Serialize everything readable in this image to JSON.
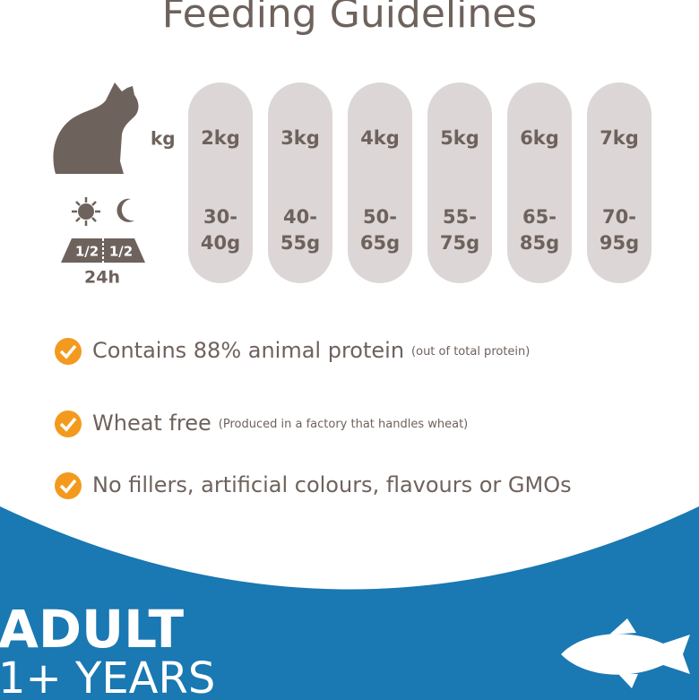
{
  "title": "Feeding Guidelines",
  "weight_unit": "kg",
  "portion": {
    "day_split": [
      "1/2",
      "1/2"
    ],
    "period": "24h"
  },
  "columns": [
    {
      "weight": "2kg",
      "amount": [
        "30-",
        "40g"
      ]
    },
    {
      "weight": "3kg",
      "amount": [
        "40-",
        "55g"
      ]
    },
    {
      "weight": "4kg",
      "amount": [
        "50-",
        "65g"
      ]
    },
    {
      "weight": "5kg",
      "amount": [
        "55-",
        "75g"
      ]
    },
    {
      "weight": "6kg",
      "amount": [
        "65-",
        "85g"
      ]
    },
    {
      "weight": "7kg",
      "amount": [
        "70-",
        "95g"
      ]
    }
  ],
  "features": [
    {
      "text": "Contains 88% animal protein",
      "note": "(out of total protein)"
    },
    {
      "text": "Wheat free",
      "note": "(Produced in a factory that handles wheat)"
    },
    {
      "text": "No fillers, artificial colours, flavours or GMOs"
    }
  ],
  "life_stage": {
    "label": "ADULT",
    "age": "1+ YEARS"
  }
}
